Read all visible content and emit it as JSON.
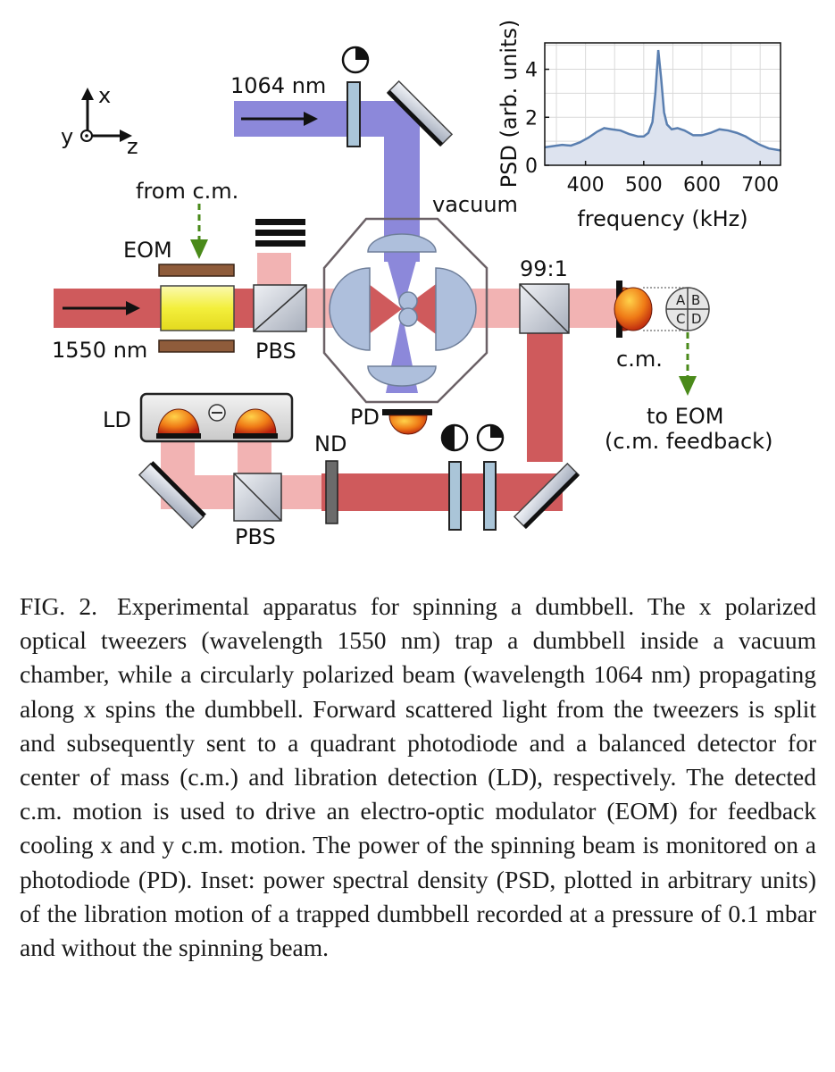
{
  "figure": {
    "coord_axes": {
      "x": "x",
      "y": "y",
      "z": "z"
    },
    "labels": {
      "wavelength_1064": "1064 nm",
      "wavelength_1550": "1550 nm",
      "vacuum": "vacuum",
      "from_cm": "from c.m.",
      "eom": "EOM",
      "pbs_top": "PBS",
      "pbs_bottom": "PBS",
      "splitter_ratio": "99:1",
      "cm": "c.m.",
      "to_eom": "to EOM",
      "cm_feedback": "(c.m. feedback)",
      "ld": "LD",
      "pd": "PD",
      "nd": "ND"
    },
    "quadrants": [
      "A",
      "B",
      "C",
      "D"
    ],
    "colors": {
      "beam_1550_strong": "#cf5a5c",
      "beam_1550_weak": "#f2b3b3",
      "beam_1064": "#8c88da",
      "feedback_arrow": "#4a8a1a",
      "lens": "#aebfdc",
      "eom_crystal": "#f3ef3c"
    }
  },
  "inset": {
    "chart_data": {
      "type": "area",
      "xlabel": "frequency (kHz)",
      "ylabel": "PSD (arb. units)",
      "xlim": [
        330,
        735
      ],
      "ylim": [
        0,
        5.1
      ],
      "xticks": [
        400,
        500,
        600,
        700
      ],
      "yticks": [
        0,
        2,
        4
      ],
      "grid": true,
      "line_color": "#5a7fb0",
      "fill_color": "#dde3ef",
      "x": [
        330,
        345,
        360,
        375,
        390,
        405,
        420,
        432,
        445,
        460,
        475,
        490,
        500,
        508,
        515,
        520,
        525,
        530,
        535,
        540,
        548,
        558,
        570,
        585,
        600,
        615,
        630,
        645,
        660,
        675,
        685,
        700,
        715,
        735
      ],
      "y": [
        0.75,
        0.8,
        0.85,
        0.82,
        0.95,
        1.15,
        1.4,
        1.55,
        1.5,
        1.45,
        1.3,
        1.2,
        1.2,
        1.35,
        1.8,
        3.0,
        4.8,
        3.6,
        2.2,
        1.7,
        1.5,
        1.55,
        1.45,
        1.25,
        1.25,
        1.35,
        1.5,
        1.45,
        1.35,
        1.2,
        1.05,
        0.85,
        0.7,
        0.62
      ]
    }
  },
  "caption": {
    "label": "FIG. 2.",
    "text": "Experimental apparatus for spinning a dumbbell. The x polarized optical tweezers (wavelength 1550 nm) trap a dumbbell inside a vacuum chamber, while a circularly polarized beam (wavelength 1064 nm) propagating along x spins the dumbbell. Forward scattered light from the tweezers is split and subsequently sent to a quadrant photodiode and a balanced detector for center of mass (c.m.) and libration detection (LD), respectively. The detected c.m. motion is used to drive an electro-optic modulator (EOM) for feedback cooling x and y c.m. motion. The power of the spinning beam is monitored on a photodiode (PD). Inset: power spectral density (PSD, plotted in arbitrary units) of the libration motion of a trapped dumbbell recorded at a pressure of 0.1 mbar and without the spinning beam."
  }
}
